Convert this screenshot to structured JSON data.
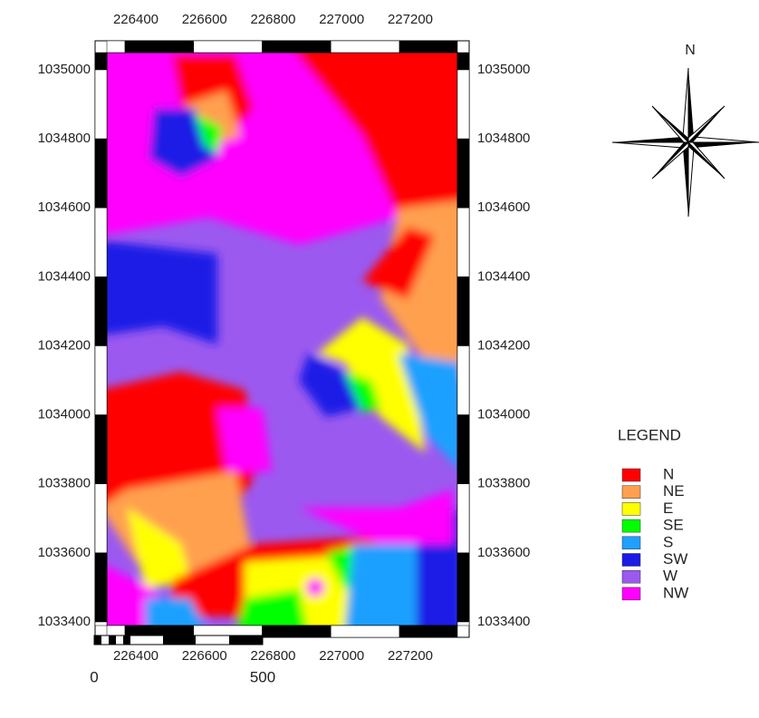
{
  "map": {
    "x_ticks": [
      226400,
      226600,
      226800,
      227000,
      227200
    ],
    "y_ticks": [
      1035000,
      1034800,
      1034600,
      1034400,
      1034200,
      1034000,
      1033800,
      1033600,
      1033400
    ],
    "north": "N",
    "legend": {
      "title": "LEGEND",
      "items": [
        {
          "label": "N",
          "color": "#ff0000"
        },
        {
          "label": "NE",
          "color": "#ffa050"
        },
        {
          "label": "E",
          "color": "#ffff00"
        },
        {
          "label": "SE",
          "color": "#00ff00"
        },
        {
          "label": "S",
          "color": "#1ea0ff"
        },
        {
          "label": "SW",
          "color": "#1a1ae6"
        },
        {
          "label": "W",
          "color": "#9b59f0"
        },
        {
          "label": "NW",
          "color": "#ff00ff"
        }
      ]
    },
    "scale_bar": {
      "labels": [
        "0",
        "500"
      ]
    }
  }
}
